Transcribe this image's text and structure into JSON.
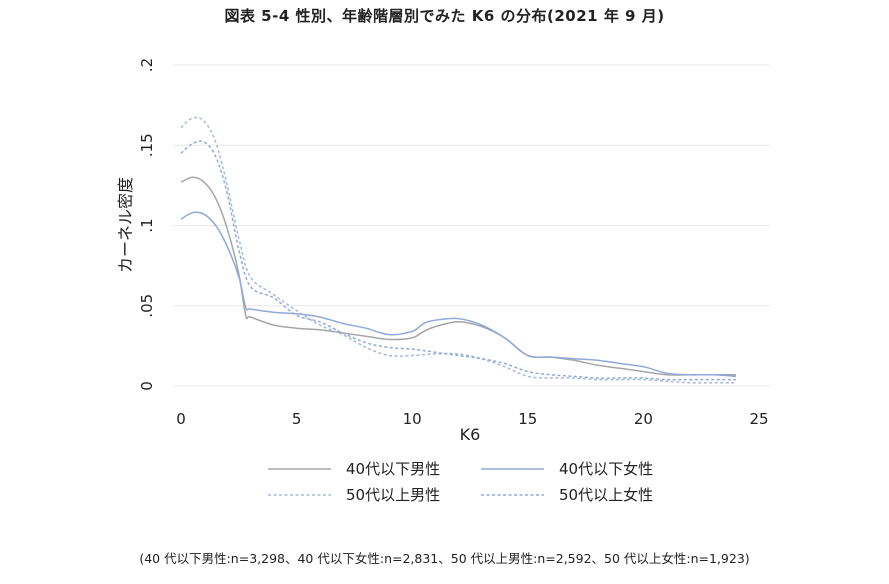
{
  "title": "図表 5-4  性別、年齢階層別でみた K6 の分布(2021 年 9 月)",
  "note": "(40 代以下男性:n=3,298、40 代以下女性:n=2,831、50 代以上男性:n=2,592、50 代以上女性:n=1,923)",
  "chart_data": {
    "type": "line",
    "title": "図表 5-4  性別、年齢階層別でみた K6 の分布(2021 年 9 月)",
    "xlabel": "K6",
    "ylabel": "カーネル密度",
    "xlim": [
      0,
      24
    ],
    "ylim": [
      0,
      0.2
    ],
    "xticks": [
      0,
      5,
      10,
      15,
      20,
      25
    ],
    "xtick_labels": [
      "0",
      "5",
      "10",
      "15",
      "20",
      "25"
    ],
    "yticks": [
      0,
      0.05,
      0.1,
      0.15,
      0.2
    ],
    "ytick_labels": [
      "0",
      ".05",
      ".1",
      ".15",
      ".2"
    ],
    "grid": "horizontal",
    "legend_position": "bottom",
    "series": [
      {
        "name": "40代以下男性",
        "color": "#a6a6a6",
        "dash": "solid",
        "points": [
          [
            0,
            0.127
          ],
          [
            0.5,
            0.13
          ],
          [
            1,
            0.127
          ],
          [
            1.5,
            0.117
          ],
          [
            2,
            0.098
          ],
          [
            2.5,
            0.07
          ],
          [
            2.8,
            0.044
          ],
          [
            3,
            0.043
          ],
          [
            4,
            0.038
          ],
          [
            5,
            0.036
          ],
          [
            6,
            0.035
          ],
          [
            7,
            0.033
          ],
          [
            8,
            0.031
          ],
          [
            9,
            0.029
          ],
          [
            10,
            0.03
          ],
          [
            10.5,
            0.034
          ],
          [
            11,
            0.037
          ],
          [
            12,
            0.04
          ],
          [
            13,
            0.037
          ],
          [
            14,
            0.03
          ],
          [
            15,
            0.019
          ],
          [
            16,
            0.018
          ],
          [
            17,
            0.016
          ],
          [
            18,
            0.013
          ],
          [
            19,
            0.011
          ],
          [
            20,
            0.009
          ],
          [
            21,
            0.007
          ],
          [
            22,
            0.007
          ],
          [
            23,
            0.007
          ],
          [
            24,
            0.007
          ]
        ]
      },
      {
        "name": "40代以下女性",
        "color": "#8fa9dc",
        "dash": "solid",
        "points": [
          [
            0,
            0.104
          ],
          [
            0.5,
            0.108
          ],
          [
            1,
            0.107
          ],
          [
            1.5,
            0.1
          ],
          [
            2,
            0.087
          ],
          [
            2.5,
            0.068
          ],
          [
            2.8,
            0.049
          ],
          [
            3,
            0.048
          ],
          [
            4,
            0.046
          ],
          [
            5,
            0.045
          ],
          [
            6,
            0.043
          ],
          [
            7,
            0.039
          ],
          [
            8,
            0.036
          ],
          [
            9,
            0.032
          ],
          [
            10,
            0.034
          ],
          [
            10.5,
            0.039
          ],
          [
            11,
            0.041
          ],
          [
            12,
            0.042
          ],
          [
            13,
            0.038
          ],
          [
            14,
            0.03
          ],
          [
            15,
            0.019
          ],
          [
            16,
            0.018
          ],
          [
            17,
            0.017
          ],
          [
            18,
            0.016
          ],
          [
            19,
            0.014
          ],
          [
            20,
            0.012
          ],
          [
            21,
            0.008
          ],
          [
            22,
            0.007
          ],
          [
            23,
            0.007
          ],
          [
            24,
            0.006
          ]
        ]
      },
      {
        "name": "50代以上男性",
        "color": "#a9b9d4",
        "dash": "dashed",
        "points": [
          [
            0,
            0.161
          ],
          [
            0.5,
            0.167
          ],
          [
            1,
            0.165
          ],
          [
            1.5,
            0.152
          ],
          [
            2,
            0.125
          ],
          [
            2.5,
            0.092
          ],
          [
            3,
            0.068
          ],
          [
            4,
            0.057
          ],
          [
            5,
            0.047
          ],
          [
            6,
            0.038
          ],
          [
            7,
            0.032
          ],
          [
            8,
            0.024
          ],
          [
            9,
            0.019
          ],
          [
            10,
            0.019
          ],
          [
            11,
            0.02
          ],
          [
            12,
            0.02
          ],
          [
            13,
            0.017
          ],
          [
            14,
            0.012
          ],
          [
            15,
            0.006
          ],
          [
            16,
            0.005
          ],
          [
            17,
            0.005
          ],
          [
            18,
            0.004
          ],
          [
            19,
            0.004
          ],
          [
            20,
            0.004
          ],
          [
            21,
            0.003
          ],
          [
            22,
            0.002
          ],
          [
            23,
            0.002
          ],
          [
            24,
            0.002
          ]
        ]
      },
      {
        "name": "50代以上女性",
        "color": "#8fa9dc",
        "dash": "dashed",
        "points": [
          [
            0,
            0.145
          ],
          [
            0.5,
            0.151
          ],
          [
            1,
            0.152
          ],
          [
            1.5,
            0.143
          ],
          [
            2,
            0.12
          ],
          [
            2.5,
            0.085
          ],
          [
            3,
            0.062
          ],
          [
            4,
            0.055
          ],
          [
            5,
            0.044
          ],
          [
            6,
            0.04
          ],
          [
            7,
            0.033
          ],
          [
            8,
            0.027
          ],
          [
            9,
            0.024
          ],
          [
            10,
            0.023
          ],
          [
            11,
            0.021
          ],
          [
            12,
            0.019
          ],
          [
            13,
            0.017
          ],
          [
            14,
            0.014
          ],
          [
            15,
            0.009
          ],
          [
            16,
            0.007
          ],
          [
            17,
            0.006
          ],
          [
            18,
            0.005
          ],
          [
            19,
            0.005
          ],
          [
            20,
            0.005
          ],
          [
            21,
            0.004
          ],
          [
            22,
            0.004
          ],
          [
            23,
            0.004
          ],
          [
            24,
            0.004
          ]
        ]
      }
    ]
  }
}
